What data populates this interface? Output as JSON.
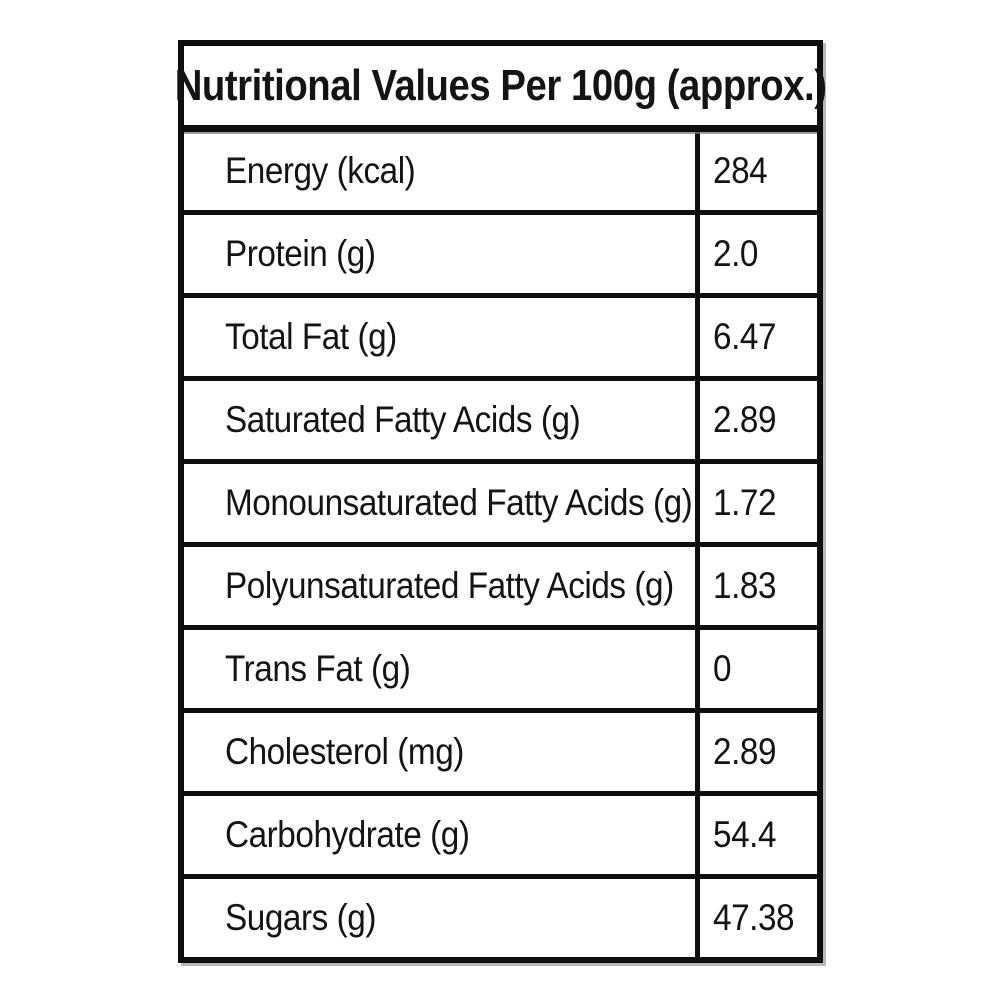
{
  "label_table": {
    "title": "Nutritional Values Per 100g (approx.)",
    "rows": [
      {
        "label": "Energy (kcal)",
        "value": "284"
      },
      {
        "label": "Protein (g)",
        "value": "2.0"
      },
      {
        "label": "Total Fat (g)",
        "value": "6.47"
      },
      {
        "label": "Saturated Fatty Acids (g)",
        "value": "2.89"
      },
      {
        "label": "Monounsaturated Fatty Acids (g)",
        "value": "1.72"
      },
      {
        "label": "Polyunsaturated Fatty Acids (g)",
        "value": "1.83"
      },
      {
        "label": "Trans Fat (g)",
        "value": "0"
      },
      {
        "label": "Cholesterol (mg)",
        "value": "2.89"
      },
      {
        "label": "Carbohydrate (g)",
        "value": "54.4"
      },
      {
        "label": "Sugars (g)",
        "value": "47.38"
      }
    ],
    "colors": {
      "border": "#0e0e0e",
      "text": "#141414",
      "shadow_gray": "#7d7d7d",
      "background": "#ffffff"
    }
  }
}
